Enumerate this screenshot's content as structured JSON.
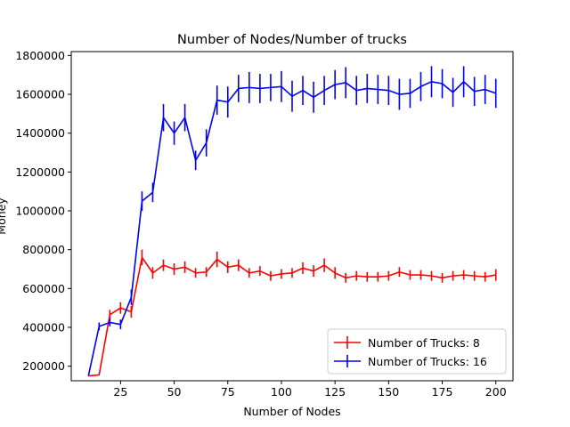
{
  "chart_data": {
    "type": "line",
    "title": "Number of Nodes/Number of trucks",
    "xlabel": "Number of Nodes",
    "ylabel": "Money",
    "xlim": [
      2,
      208
    ],
    "ylim": [
      125000,
      1820000
    ],
    "xticks": [
      25,
      50,
      75,
      100,
      125,
      150,
      175,
      200
    ],
    "yticks": [
      200000,
      400000,
      600000,
      800000,
      1000000,
      1200000,
      1400000,
      1600000,
      1800000
    ],
    "grid": false,
    "legend_position": "lower-right",
    "series": [
      {
        "name": "Number of Trucks: 8",
        "color": "#ff0000",
        "x": [
          10,
          15,
          20,
          25,
          30,
          35,
          40,
          45,
          50,
          55,
          60,
          65,
          70,
          75,
          80,
          85,
          90,
          95,
          100,
          105,
          110,
          115,
          120,
          125,
          130,
          135,
          140,
          145,
          150,
          155,
          160,
          165,
          170,
          175,
          180,
          185,
          190,
          195,
          200
        ],
        "y": [
          150000,
          155000,
          465000,
          500000,
          480000,
          760000,
          680000,
          720000,
          700000,
          710000,
          680000,
          685000,
          750000,
          710000,
          720000,
          680000,
          690000,
          665000,
          675000,
          680000,
          705000,
          690000,
          720000,
          680000,
          655000,
          665000,
          660000,
          660000,
          665000,
          685000,
          670000,
          670000,
          665000,
          655000,
          665000,
          670000,
          665000,
          660000,
          670000
        ],
        "err": [
          0,
          0,
          25000,
          30000,
          30000,
          40000,
          30000,
          30000,
          30000,
          30000,
          25000,
          25000,
          40000,
          30000,
          30000,
          25000,
          25000,
          25000,
          25000,
          25000,
          30000,
          30000,
          35000,
          30000,
          25000,
          25000,
          25000,
          25000,
          25000,
          25000,
          25000,
          25000,
          25000,
          25000,
          25000,
          25000,
          25000,
          25000,
          30000
        ]
      },
      {
        "name": "Number of Trucks: 16",
        "color": "#0000ff",
        "x": [
          10,
          15,
          20,
          25,
          30,
          35,
          40,
          45,
          50,
          55,
          60,
          65,
          70,
          75,
          80,
          85,
          90,
          95,
          100,
          105,
          110,
          115,
          120,
          125,
          130,
          135,
          140,
          145,
          150,
          155,
          160,
          165,
          170,
          175,
          180,
          185,
          190,
          195,
          200
        ],
        "y": [
          150000,
          405000,
          425000,
          415000,
          555000,
          1050000,
          1095000,
          1480000,
          1400000,
          1480000,
          1260000,
          1350000,
          1570000,
          1560000,
          1630000,
          1635000,
          1630000,
          1635000,
          1640000,
          1590000,
          1620000,
          1585000,
          1620000,
          1650000,
          1660000,
          1620000,
          1630000,
          1625000,
          1620000,
          1600000,
          1605000,
          1640000,
          1665000,
          1655000,
          1610000,
          1665000,
          1615000,
          1625000,
          1605000
        ],
        "err": [
          0,
          20000,
          20000,
          25000,
          40000,
          50000,
          50000,
          70000,
          60000,
          70000,
          50000,
          70000,
          75000,
          80000,
          70000,
          80000,
          75000,
          70000,
          80000,
          80000,
          75000,
          80000,
          75000,
          75000,
          80000,
          75000,
          75000,
          75000,
          75000,
          80000,
          75000,
          75000,
          80000,
          75000,
          75000,
          80000,
          75000,
          75000,
          75000
        ]
      }
    ]
  }
}
